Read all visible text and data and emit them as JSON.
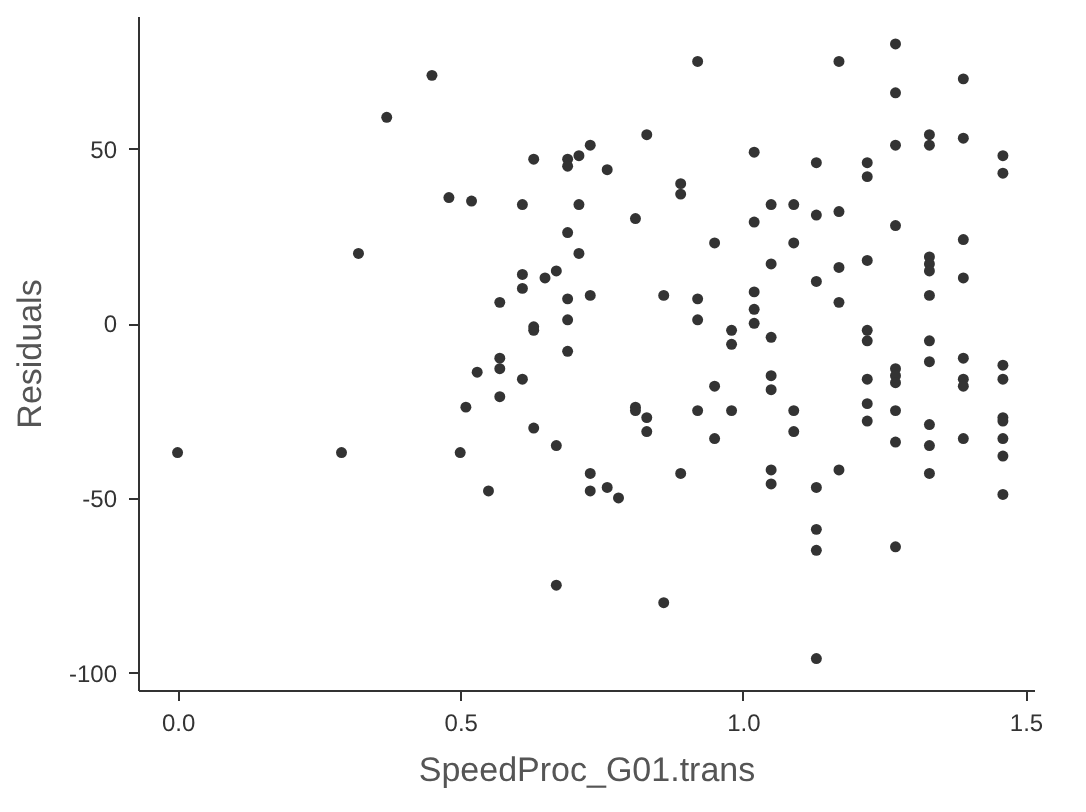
{
  "chart_data": {
    "type": "scatter",
    "xlabel": "SpeedProc_G01.trans",
    "ylabel": "Residuals",
    "xlim": [
      -0.07,
      1.515
    ],
    "ylim": [
      -105,
      88
    ],
    "xticks": [
      {
        "value": 0,
        "label": "0.0"
      },
      {
        "value": 0.5,
        "label": "0.5"
      },
      {
        "value": 1,
        "label": "1.0"
      },
      {
        "value": 1.5,
        "label": "1.5"
      }
    ],
    "yticks": [
      -100,
      -50,
      0,
      50
    ],
    "grid": false,
    "legend": false,
    "series": [
      {
        "color": "#333333",
        "x": [
          0.0,
          0.29,
          0.32,
          0.37,
          0.45,
          0.48,
          0.52,
          0.5,
          0.55,
          0.51,
          0.53,
          0.57,
          0.57,
          0.57,
          0.61,
          0.63,
          0.67,
          0.69,
          0.67,
          0.63,
          0.73,
          0.73,
          0.61,
          0.63,
          0.69,
          0.69,
          0.71,
          0.73,
          0.71,
          0.69,
          0.71,
          0.61,
          0.61,
          0.65,
          0.67,
          0.57,
          0.69,
          0.69,
          0.63,
          0.73,
          0.92,
          1.17,
          1.27,
          1.27,
          1.39,
          0.83,
          0.76,
          1.02,
          1.13,
          1.22,
          1.22,
          1.27,
          1.33,
          1.33,
          1.39,
          1.46,
          1.46,
          0.89,
          0.89,
          0.81,
          1.02,
          1.05,
          1.09,
          1.13,
          1.17,
          1.27,
          1.39,
          0.95,
          1.09,
          1.05,
          1.17,
          1.22,
          1.13,
          1.33,
          1.33,
          1.33,
          1.39,
          0.86,
          0.92,
          1.02,
          1.17,
          1.33,
          0.92,
          1.02,
          1.02,
          0.98,
          0.98,
          1.05,
          1.22,
          1.22,
          1.33,
          1.33,
          1.27,
          1.27,
          1.27,
          1.39,
          1.39,
          1.39,
          1.46,
          1.46,
          0.95,
          1.05,
          1.05,
          1.22,
          0.81,
          0.81,
          0.83,
          0.83,
          0.92,
          0.98,
          1.09,
          1.09,
          1.22,
          1.22,
          1.27,
          1.27,
          1.33,
          1.33,
          1.33,
          1.39,
          1.46,
          1.46,
          1.46,
          1.46,
          1.46,
          0.95,
          0.76,
          0.78,
          0.89,
          1.05,
          1.05,
          1.17,
          1.13,
          1.13,
          1.13,
          1.27,
          0.86,
          1.13
        ],
        "values": [
          -37,
          -37,
          20,
          59,
          71,
          36,
          35,
          -37,
          -48,
          -24,
          -14,
          -10,
          -13,
          -21,
          -16,
          -30,
          -35,
          -8,
          -75,
          -2,
          -43,
          -48,
          34,
          47,
          47,
          45,
          48,
          51,
          34,
          26,
          20,
          14,
          10,
          13,
          15,
          6,
          7,
          1,
          -1,
          8,
          75,
          75,
          80,
          66,
          70,
          54,
          44,
          49,
          46,
          46,
          42,
          51,
          54,
          51,
          53,
          48,
          43,
          40,
          37,
          30,
          29,
          34,
          34,
          31,
          32,
          28,
          24,
          23,
          23,
          17,
          16,
          18,
          12,
          19,
          17,
          15,
          13,
          8,
          7,
          9,
          6,
          8,
          1,
          4,
          0,
          -2,
          -6,
          -4,
          -2,
          -5,
          -5,
          -11,
          -13,
          -15,
          -17,
          -10,
          -16,
          -18,
          -12,
          -16,
          -18,
          -15,
          -19,
          -16,
          -24,
          -25,
          -27,
          -31,
          -25,
          -25,
          -25,
          -31,
          -23,
          -28,
          -25,
          -34,
          -29,
          -35,
          -43,
          -33,
          -27,
          -28,
          -33,
          -38,
          -49,
          -33,
          -47,
          -50,
          -43,
          -42,
          -46,
          -42,
          -47,
          -59,
          -65,
          -64,
          -80,
          -96
        ]
      }
    ]
  }
}
